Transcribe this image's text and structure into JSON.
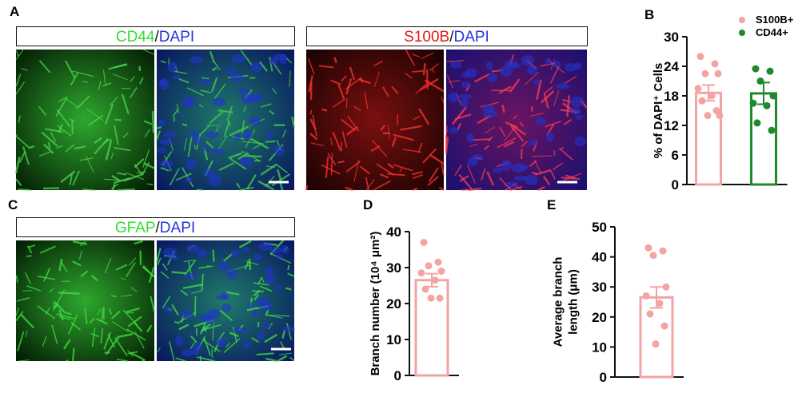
{
  "panel_labels": [
    "A",
    "B",
    "C",
    "D",
    "E"
  ],
  "image_headers": [
    [
      "CD44",
      "/",
      "DAPI"
    ],
    [
      "S100B",
      "/",
      "DAPI"
    ],
    [
      "GFAP",
      "/",
      "DAPI"
    ]
  ],
  "chart_data": [
    {
      "type": "bar",
      "y_label": [
        "% of DAPI⁺ Cells"
      ],
      "ylim": [
        0,
        30
      ],
      "yticks": [
        0,
        6,
        12,
        18,
        24,
        30
      ],
      "series": [
        {
          "name": "S100B+",
          "color": "#f4a3a3",
          "values": [
            18.6
          ],
          "errors": [
            1.6
          ],
          "points": [
            26,
            24.5,
            22.5,
            22.5,
            19.5,
            18,
            17,
            15,
            14,
            14
          ]
        },
        {
          "name": "CD44+",
          "color": "#1e8a2a",
          "values": [
            18.5
          ],
          "errors": [
            2.2
          ],
          "points": [
            23.5,
            23,
            21,
            18,
            16.5,
            16,
            12.5,
            11
          ]
        }
      ]
    },
    {
      "type": "bar",
      "y_label": [
        "Branch number (10⁴ μm²)"
      ],
      "ylim": [
        0,
        40
      ],
      "yticks": [
        0,
        10,
        20,
        30,
        40
      ],
      "series": [
        {
          "color": "#f4a3a3",
          "values": [
            26.5
          ],
          "errors": [
            1.8
          ],
          "points": [
            37,
            31.5,
            30.5,
            29,
            28.5,
            26.5,
            24,
            21.5,
            21.5
          ]
        }
      ]
    },
    {
      "type": "bar",
      "y_label": [
        "Average branch",
        "length (μm)"
      ],
      "ylim": [
        0,
        50
      ],
      "yticks": [
        0,
        10,
        20,
        30,
        40,
        50
      ],
      "series": [
        {
          "color": "#f4a3a3",
          "values": [
            26.5
          ],
          "errors": [
            3.5
          ],
          "points": [
            43,
            42,
            40.5,
            30,
            27,
            24.5,
            21,
            17,
            11
          ]
        }
      ]
    }
  ]
}
